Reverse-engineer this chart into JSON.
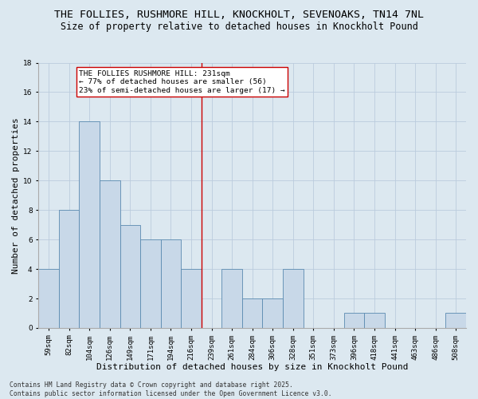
{
  "title_line1": "THE FOLLIES, RUSHMORE HILL, KNOCKHOLT, SEVENOAKS, TN14 7NL",
  "title_line2": "Size of property relative to detached houses in Knockholt Pound",
  "xlabel": "Distribution of detached houses by size in Knockholt Pound",
  "ylabel": "Number of detached properties",
  "categories": [
    "59sqm",
    "82sqm",
    "104sqm",
    "126sqm",
    "149sqm",
    "171sqm",
    "194sqm",
    "216sqm",
    "239sqm",
    "261sqm",
    "284sqm",
    "306sqm",
    "328sqm",
    "351sqm",
    "373sqm",
    "396sqm",
    "418sqm",
    "441sqm",
    "463sqm",
    "486sqm",
    "508sqm"
  ],
  "values": [
    4,
    8,
    14,
    10,
    7,
    6,
    6,
    4,
    0,
    4,
    2,
    2,
    4,
    0,
    0,
    1,
    1,
    0,
    0,
    0,
    1
  ],
  "bar_color": "#c8d8e8",
  "bar_edge_color": "#5a8ab0",
  "bar_linewidth": 0.6,
  "grid_color": "#bbccdd",
  "background_color": "#dce8f0",
  "vline_x_index": 7.5,
  "vline_color": "#cc0000",
  "annotation_text": "THE FOLLIES RUSHMORE HILL: 231sqm\n← 77% of detached houses are smaller (56)\n23% of semi-detached houses are larger (17) →",
  "annotation_box_color": "#ffffff",
  "annotation_box_edge": "#cc0000",
  "ylim": [
    0,
    18
  ],
  "yticks": [
    0,
    2,
    4,
    6,
    8,
    10,
    12,
    14,
    16,
    18
  ],
  "footer_text": "Contains HM Land Registry data © Crown copyright and database right 2025.\nContains public sector information licensed under the Open Government Licence v3.0.",
  "title_fontsize": 9.5,
  "subtitle_fontsize": 8.5,
  "axis_label_fontsize": 8,
  "tick_fontsize": 6.5,
  "annotation_fontsize": 6.8,
  "footer_fontsize": 5.8
}
